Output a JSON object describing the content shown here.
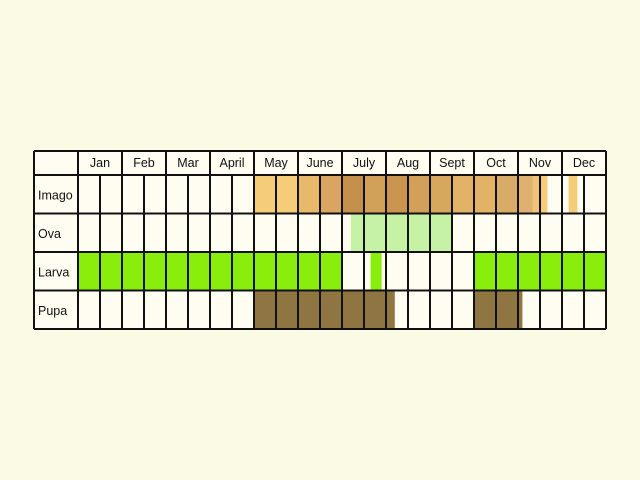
{
  "chart_data": {
    "type": "table",
    "title": "",
    "months": [
      "Jan",
      "Feb",
      "Mar",
      "April",
      "May",
      "June",
      "July",
      "Aug",
      "Sept",
      "Oct",
      "Nov",
      "Dec"
    ],
    "subdivisions_per_month": 2,
    "rows": [
      {
        "label": "Imago",
        "spans": [
          {
            "from": 4.0,
            "to": 5.0,
            "color": "#f5cd79"
          },
          {
            "from": 5.0,
            "to": 5.5,
            "color": "#e8b96a"
          },
          {
            "from": 5.5,
            "to": 6.0,
            "color": "#d9a560"
          },
          {
            "from": 6.0,
            "to": 6.5,
            "color": "#c5904c"
          },
          {
            "from": 6.5,
            "to": 7.0,
            "color": "#d3a05a"
          },
          {
            "from": 7.0,
            "to": 7.5,
            "color": "#c9954f"
          },
          {
            "from": 7.5,
            "to": 8.0,
            "color": "#d3a05a"
          },
          {
            "from": 8.0,
            "to": 8.5,
            "color": "#d7a75d"
          },
          {
            "from": 8.5,
            "to": 9.5,
            "color": "#e2b266"
          },
          {
            "from": 9.5,
            "to": 10.0,
            "color": "#d8ab66"
          },
          {
            "from": 10.0,
            "to": 10.33,
            "color": "#e0b070"
          },
          {
            "from": 10.33,
            "to": 10.5,
            "color": "#f0c27a"
          },
          {
            "from": 10.5,
            "to": 10.67,
            "color": "#f5cd79"
          },
          {
            "from": 11.15,
            "to": 11.35,
            "color": "#f5cd79"
          }
        ]
      },
      {
        "label": "Ova",
        "spans": [
          {
            "from": 6.2,
            "to": 8.5,
            "color": "#c6f2a6"
          }
        ]
      },
      {
        "label": "Larva",
        "spans": [
          {
            "from": 0.0,
            "to": 6.0,
            "color": "#8aee0c"
          },
          {
            "from": 6.65,
            "to": 6.9,
            "color": "#8aee0c"
          },
          {
            "from": 9.0,
            "to": 12.0,
            "color": "#8aee0c"
          }
        ]
      },
      {
        "label": "Pupa",
        "spans": [
          {
            "from": 4.0,
            "to": 7.2,
            "color": "#8e7541"
          },
          {
            "from": 9.0,
            "to": 10.1,
            "color": "#8e7541"
          }
        ]
      }
    ]
  }
}
